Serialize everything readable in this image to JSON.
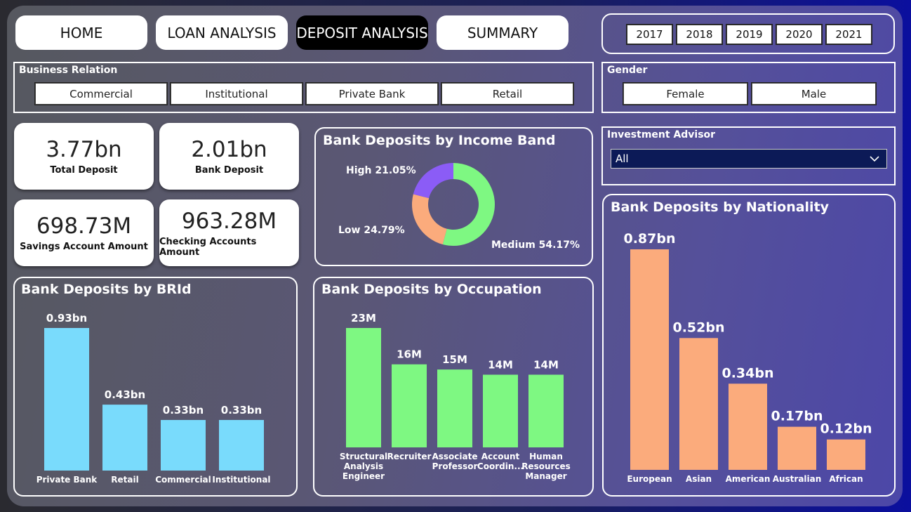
{
  "nav": [
    {
      "label": "HOME",
      "active": false
    },
    {
      "label": "LOAN ANALYSIS",
      "active": false
    },
    {
      "label": "DEPOSIT ANALYSIS",
      "active": true
    },
    {
      "label": "SUMMARY",
      "active": false
    }
  ],
  "years": [
    "2017",
    "2018",
    "2019",
    "2020",
    "2021"
  ],
  "business_relation": {
    "title": "Business Relation",
    "options": [
      "Commercial",
      "Institutional",
      "Private Bank",
      "Retail"
    ]
  },
  "gender": {
    "title": "Gender",
    "options": [
      "Female",
      "Male"
    ]
  },
  "investment_advisor": {
    "title": "Investment Advisor",
    "selected": "All"
  },
  "kpis": [
    {
      "value": "3.77bn",
      "label": "Total Deposit"
    },
    {
      "value": "2.01bn",
      "label": "Bank Deposit"
    },
    {
      "value": "698.73M",
      "label": "Savings Account Amount"
    },
    {
      "value": "963.28M",
      "label": "Checking Accounts Amount"
    }
  ],
  "chart_data": [
    {
      "type": "pie",
      "title": "Bank Deposits by Income Band",
      "categories": [
        "Medium",
        "Low",
        "High"
      ],
      "values": [
        54.17,
        24.79,
        21.05
      ],
      "labels": [
        "Medium 54.17%",
        "Low 24.79%",
        "High 21.05%"
      ],
      "colors": [
        "#7ef882",
        "#fbab7c",
        "#8b5cf6"
      ]
    },
    {
      "type": "bar",
      "title": "Bank Deposits by BRId",
      "categories": [
        "Private Bank",
        "Retail",
        "Commercial",
        "Institutional"
      ],
      "values": [
        0.93,
        0.43,
        0.33,
        0.33
      ],
      "labels": [
        "0.93bn",
        "0.43bn",
        "0.33bn",
        "0.33bn"
      ],
      "color": "#79dbfc"
    },
    {
      "type": "bar",
      "title": "Bank Deposits by Occupation",
      "categories": [
        "Structural Analysis Engineer",
        "Recruiter",
        "Associate Professor",
        "Account Coordin...",
        "Human Resources Manager"
      ],
      "values": [
        23,
        16,
        15,
        14,
        14
      ],
      "labels": [
        "23M",
        "16M",
        "15M",
        "14M",
        "14M"
      ],
      "color": "#7ef882"
    },
    {
      "type": "bar",
      "title": "Bank Deposits by Nationality",
      "categories": [
        "European",
        "Asian",
        "American",
        "Australian",
        "African"
      ],
      "values": [
        0.87,
        0.52,
        0.34,
        0.17,
        0.12
      ],
      "labels": [
        "0.87bn",
        "0.52bn",
        "0.34bn",
        "0.17bn",
        "0.12bn"
      ],
      "color": "#fbab7c"
    }
  ]
}
